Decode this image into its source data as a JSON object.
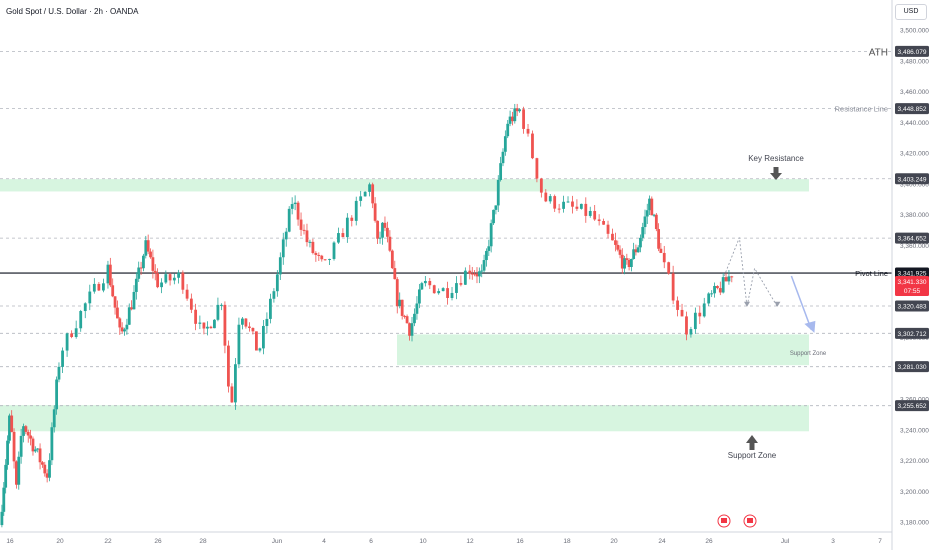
{
  "symbol_title": "Gold Spot / U.S. Dollar · 2h · OANDA",
  "currency": "USD",
  "colors": {
    "up": "#26a69a",
    "down": "#ef5350",
    "zone": "#d7f5e0",
    "pivot_line": "#363a45",
    "dashed_line": "#b2b5be",
    "label_dark": "#434651",
    "label_pivot": "#131722",
    "label_current": "#f23645",
    "arrow_dark": "#555555",
    "arrow_projection": "#a7b9ee",
    "projection_line": "#9aa0ad"
  },
  "chart_data": {
    "type": "candlestick",
    "symbol": "XAUUSD",
    "timeframe": "2h",
    "ylim": [
      3175,
      3515
    ],
    "y_ticks": [
      "3,500.000",
      "3,480.000",
      "3,460.000",
      "3,440.000",
      "3,420.000",
      "3,400.000",
      "3,380.000",
      "3,360.000",
      "3,340.000",
      "3,320.000",
      "3,300.000",
      "3,280.000",
      "3,260.000",
      "3,240.000",
      "3,220.000",
      "3,200.000",
      "3,180.000"
    ],
    "x_ticks": [
      "16",
      "20",
      "22",
      "26",
      "28",
      "Jun",
      "4",
      "6",
      "10",
      "12",
      "16",
      "18",
      "20",
      "24",
      "26",
      "Jul",
      "3",
      "7"
    ],
    "price_path": [
      {
        "date": "May 15",
        "price": 3178
      },
      {
        "date": "May 16",
        "price": 3250
      },
      {
        "date": "May 16",
        "price": 3200
      },
      {
        "date": "May 17",
        "price": 3245
      },
      {
        "date": "May 19",
        "price": 3210
      },
      {
        "date": "May 20",
        "price": 3290
      },
      {
        "date": "May 21",
        "price": 3320
      },
      {
        "date": "May 22",
        "price": 3345
      },
      {
        "date": "May 23",
        "price": 3300
      },
      {
        "date": "May 24",
        "price": 3325
      },
      {
        "date": "May 25",
        "price": 3360
      },
      {
        "date": "May 26",
        "price": 3335
      },
      {
        "date": "May 27",
        "price": 3340
      },
      {
        "date": "May 28",
        "price": 3300
      },
      {
        "date": "May 29",
        "price": 3325
      },
      {
        "date": "May 29",
        "price": 3250
      },
      {
        "date": "May 30",
        "price": 3320
      },
      {
        "date": "May 31",
        "price": 3290
      },
      {
        "date": "Jun 1",
        "price": 3340
      },
      {
        "date": "Jun 2",
        "price": 3390
      },
      {
        "date": "Jun 3",
        "price": 3360
      },
      {
        "date": "Jun 4",
        "price": 3345
      },
      {
        "date": "Jun 5",
        "price": 3375
      },
      {
        "date": "Jun 6",
        "price": 3400
      },
      {
        "date": "Jun 6",
        "price": 3360
      },
      {
        "date": "Jun 7",
        "price": 3375
      },
      {
        "date": "Jun 8",
        "price": 3325
      },
      {
        "date": "Jun 9",
        "price": 3305
      },
      {
        "date": "Jun 10",
        "price": 3335
      },
      {
        "date": "Jun 11",
        "price": 3330
      },
      {
        "date": "Jun 12",
        "price": 3345
      },
      {
        "date": "Jun 13",
        "price": 3340
      },
      {
        "date": "Jun 14",
        "price": 3385
      },
      {
        "date": "Jun 15",
        "price": 3440
      },
      {
        "date": "Jun 16",
        "price": 3448
      },
      {
        "date": "Jun 16",
        "price": 3420
      },
      {
        "date": "Jun 17",
        "price": 3390
      },
      {
        "date": "Jun 18",
        "price": 3385
      },
      {
        "date": "Jun 19",
        "price": 3380
      },
      {
        "date": "Jun 20",
        "price": 3360
      },
      {
        "date": "Jun 21",
        "price": 3345
      },
      {
        "date": "Jun 22",
        "price": 3360
      },
      {
        "date": "Jun 23",
        "price": 3390
      },
      {
        "date": "Jun 24",
        "price": 3350
      },
      {
        "date": "Jun 25",
        "price": 3305
      },
      {
        "date": "Jun 26",
        "price": 3325
      },
      {
        "date": "Jun 27",
        "price": 3335
      },
      {
        "date": "Jun 27",
        "price": 3342
      }
    ],
    "zones": [
      {
        "name": "key-resistance-zone",
        "date_from": "May 15",
        "date_to": "Jul 2",
        "low": 3395,
        "high": 3403
      },
      {
        "name": "upper-support-zone",
        "date_from": "Jun 8",
        "date_to": "Jul 2",
        "low": 3282,
        "high": 3302
      },
      {
        "name": "lower-support-zone",
        "date_from": "May 15",
        "date_to": "Jul 2",
        "low": 3239,
        "high": 3256
      }
    ],
    "levels": [
      {
        "value": 3486.079,
        "text": "3,486.079",
        "style": "dashed",
        "annotation": "ATH"
      },
      {
        "value": 3448.852,
        "text": "3,448.852",
        "style": "dashed",
        "annotation": "Resistance Line"
      },
      {
        "value": 3403.249,
        "text": "3,403.249",
        "style": "dashed",
        "annotation": ""
      },
      {
        "value": 3364.652,
        "text": "3,364.652",
        "style": "dashed",
        "annotation": ""
      },
      {
        "value": 3341.925,
        "text": "3,341.925",
        "style": "solid",
        "annotation": "Pivot Line"
      },
      {
        "value": 3320.483,
        "text": "3,320.483",
        "style": "dashed",
        "annotation": ""
      },
      {
        "value": 3302.712,
        "text": "3,302.712",
        "style": "dashed",
        "annotation": ""
      },
      {
        "value": 3281.03,
        "text": "3,281.030",
        "style": "dashed",
        "annotation": ""
      },
      {
        "value": 3255.652,
        "text": "3,255.652",
        "style": "dashed",
        "annotation": ""
      }
    ],
    "current_price": {
      "value": 3341.33,
      "text": "3,341.330",
      "countdown": "07:55"
    },
    "annotations": [
      {
        "text": "Key Resistance",
        "kind": "arrow-down"
      },
      {
        "text": "Support Zone",
        "kind": "zone-label"
      },
      {
        "text": "Support Zone",
        "kind": "arrow-up"
      }
    ],
    "projection": [
      {
        "date": "Jun 27",
        "price": 3340
      },
      {
        "date": "Jun 28",
        "price": 3365
      },
      {
        "date": "Jun 28",
        "price": 3320
      },
      {
        "date": "Jun 29",
        "price": 3345
      },
      {
        "date": "Jun 30",
        "price": 3320
      }
    ],
    "projection_arrow": {
      "from_price": 3340,
      "to_price": 3305
    },
    "grid": false
  }
}
